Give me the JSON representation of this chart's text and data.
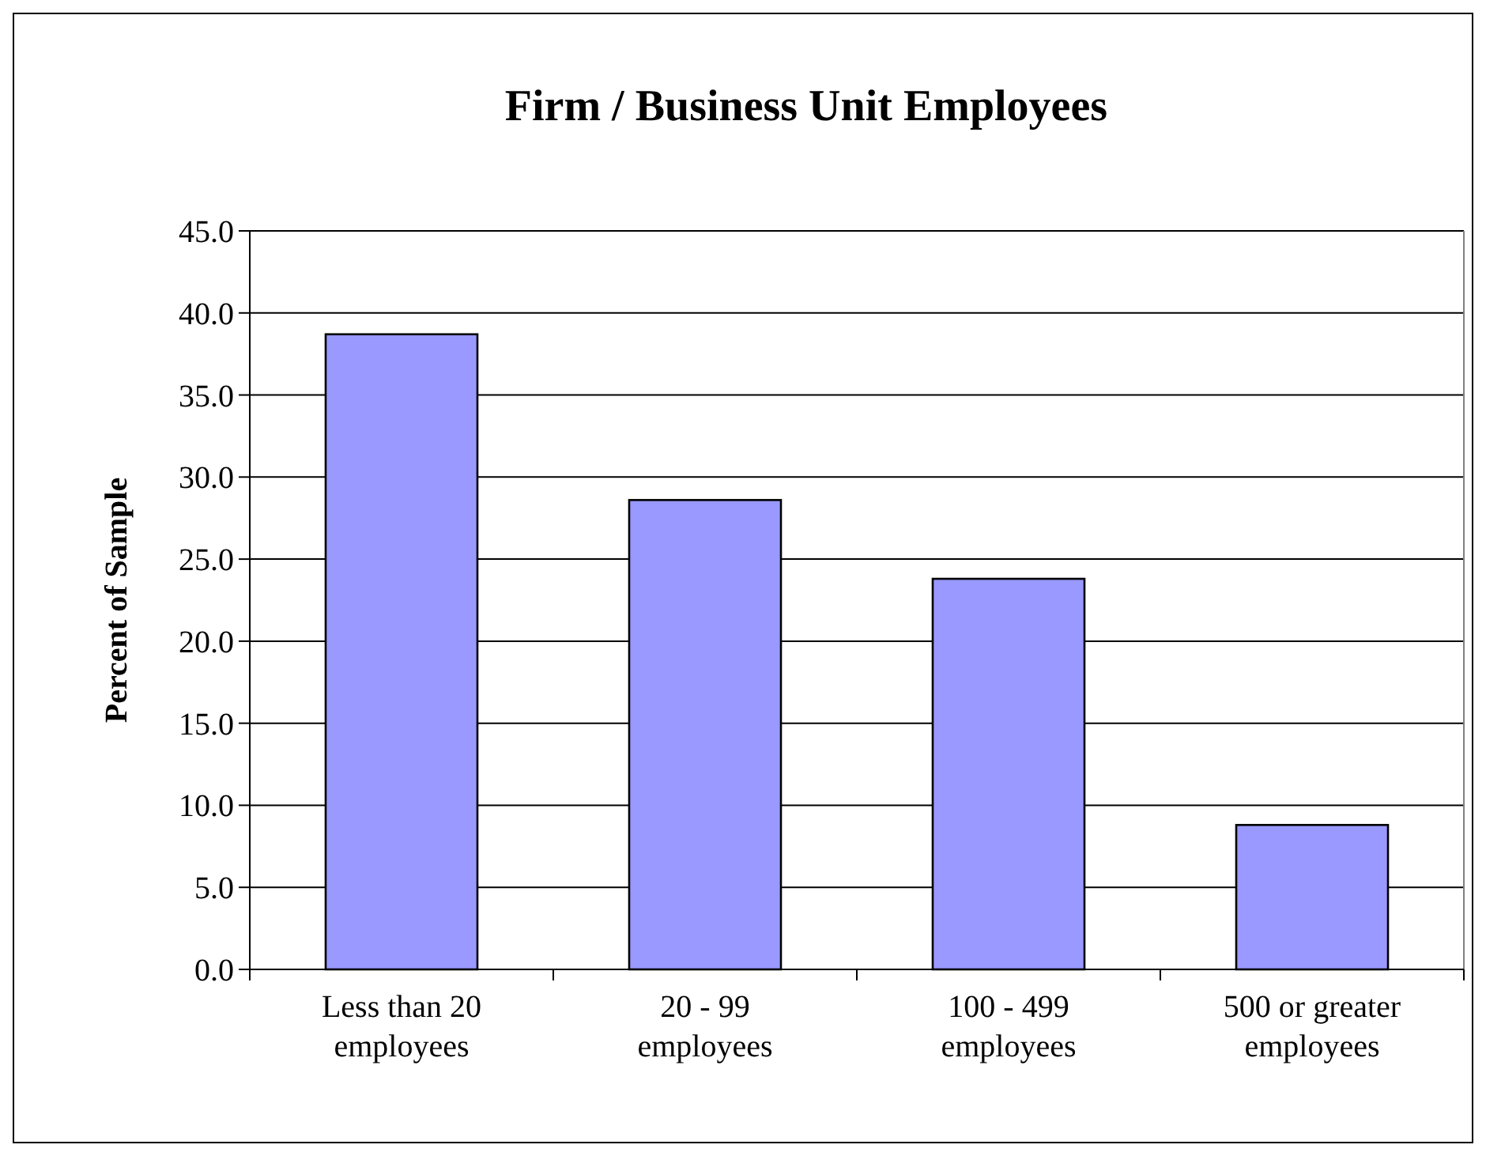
{
  "chart_data": {
    "type": "bar",
    "title": "Firm / Business Unit Employees",
    "ylabel": "Percent of Sample",
    "categories": [
      "Less than 20\nemployees",
      "20 - 99\nemployees",
      "100 - 499\nemployees",
      "500 or greater\nemployees"
    ],
    "values": [
      38.7,
      28.6,
      23.8,
      8.8
    ],
    "color": "#9999ff",
    "ylim": [
      0,
      45
    ],
    "yticks": [
      {
        "value": 0,
        "label": "0.0"
      },
      {
        "value": 5,
        "label": "5.0"
      },
      {
        "value": 10,
        "label": "10.0"
      },
      {
        "value": 15,
        "label": "15.0"
      },
      {
        "value": 20,
        "label": "20.0"
      },
      {
        "value": 25,
        "label": "25.0"
      },
      {
        "value": 30,
        "label": "30.0"
      },
      {
        "value": 35,
        "label": "35.0"
      },
      {
        "value": 40,
        "label": "40.0"
      },
      {
        "value": 45,
        "label": "45.0"
      }
    ],
    "grid": "y"
  }
}
